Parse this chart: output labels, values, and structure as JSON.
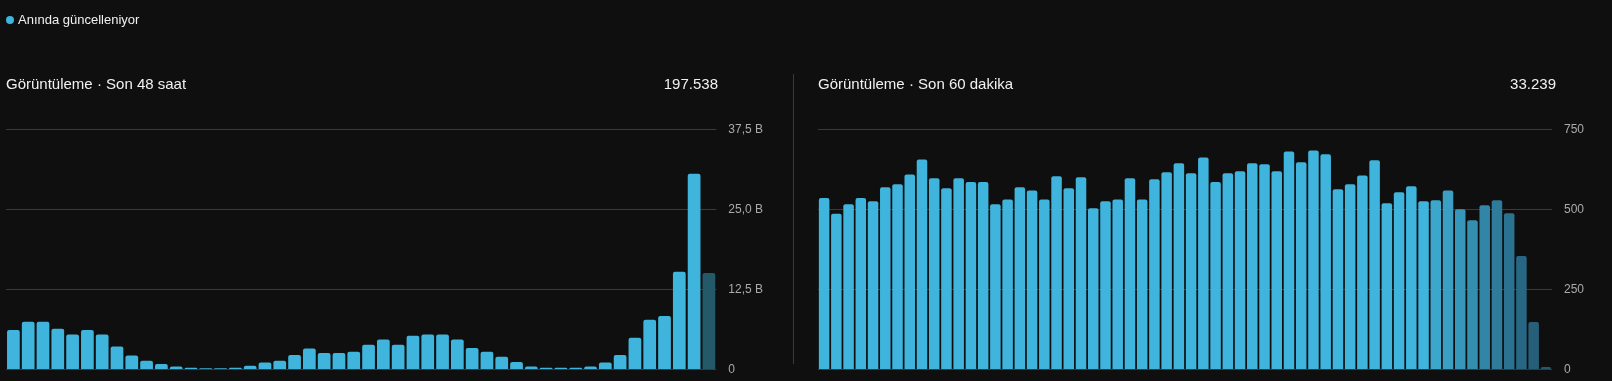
{
  "chart_data": [
    {
      "type": "bar",
      "title": "Görüntüleme · Son 48 saat",
      "subtitle": "197.538",
      "annotations": [
        "Anında güncelleniyor"
      ],
      "categories": [
        null,
        null,
        null,
        null,
        null,
        null,
        null,
        null,
        null,
        null,
        null,
        null,
        null,
        null,
        null,
        null,
        null,
        null,
        null,
        null,
        null,
        null,
        null,
        null,
        null,
        null,
        null,
        null,
        null,
        null,
        null,
        null,
        null,
        null,
        null,
        null,
        null,
        null,
        null,
        null,
        null,
        null,
        null,
        null,
        null,
        null,
        null,
        null
      ],
      "values": [
        6.1,
        7.4,
        7.4,
        6.3,
        5.4,
        6.1,
        5.4,
        3.5,
        2.1,
        1.3,
        0.8,
        0.4,
        0.2,
        0.1,
        0.1,
        0.2,
        0.5,
        1.0,
        1.3,
        2.2,
        3.2,
        2.5,
        2.5,
        2.7,
        3.8,
        4.6,
        3.8,
        5.2,
        5.4,
        5.4,
        4.6,
        3.3,
        2.7,
        1.9,
        1.1,
        0.4,
        0.2,
        0.2,
        0.2,
        0.4,
        1.0,
        2.2,
        4.9,
        7.7,
        8.3,
        15.2,
        30.5,
        15.0
      ],
      "colors": [
        "#3fb4dc",
        "#3fb4dc",
        "#3fb4dc",
        "#3fb4dc",
        "#3fb4dc",
        "#3fb4dc",
        "#3fb4dc",
        "#3fb4dc",
        "#3fb4dc",
        "#3fb4dc",
        "#3fb4dc",
        "#3fb4dc",
        "#3fb4dc",
        "#3fb4dc",
        "#3fb4dc",
        "#3fb4dc",
        "#3fb4dc",
        "#3fb4dc",
        "#3fb4dc",
        "#3fb4dc",
        "#3fb4dc",
        "#3fb4dc",
        "#3fb4dc",
        "#3fb4dc",
        "#3fb4dc",
        "#3fb4dc",
        "#3fb4dc",
        "#3fb4dc",
        "#3fb4dc",
        "#3fb4dc",
        "#3fb4dc",
        "#3fb4dc",
        "#3fb4dc",
        "#3fb4dc",
        "#3fb4dc",
        "#3fb4dc",
        "#3fb4dc",
        "#3fb4dc",
        "#3fb4dc",
        "#3fb4dc",
        "#3fb4dc",
        "#3fb4dc",
        "#3fb4dc",
        "#3fb4dc",
        "#3fb4dc",
        "#3fb4dc",
        "#3fb4dc",
        "#24596a"
      ],
      "ylim": [
        0,
        37.5
      ],
      "yticks": [
        0,
        {
          "value": 12.5,
          "label": "12,5 B"
        },
        {
          "value": 25,
          "label": "25,0 B"
        },
        {
          "value": 37.5,
          "label": "37,5 B"
        }
      ],
      "grid": "y",
      "tick_labels": "y"
    },
    {
      "type": "bar",
      "title": "Görüntüleme · Son 60 dakika",
      "subtitle": "33.239",
      "categories": [
        null,
        null,
        null,
        null,
        null,
        null,
        null,
        null,
        null,
        null,
        null,
        null,
        null,
        null,
        null,
        null,
        null,
        null,
        null,
        null,
        null,
        null,
        null,
        null,
        null,
        null,
        null,
        null,
        null,
        null,
        null,
        null,
        null,
        null,
        null,
        null,
        null,
        null,
        null,
        null,
        null,
        null,
        null,
        null,
        null,
        null,
        null,
        null,
        null,
        null,
        null,
        null,
        null,
        null,
        null,
        null,
        null,
        null,
        null,
        null
      ],
      "values": [
        534,
        485,
        515,
        534,
        524,
        568,
        577,
        608,
        655,
        596,
        565,
        596,
        584,
        584,
        515,
        530,
        568,
        558,
        530,
        602,
        565,
        599,
        502,
        524,
        530,
        596,
        530,
        593,
        615,
        643,
        612,
        661,
        584,
        612,
        618,
        643,
        640,
        618,
        680,
        646,
        683,
        671,
        562,
        577,
        605,
        652,
        518,
        552,
        571,
        524,
        527,
        558,
        499,
        465,
        512,
        527,
        487,
        353,
        147,
        6
      ],
      "colors": [
        "#3fb4dc",
        "#3fb4dc",
        "#3fb4dc",
        "#3fb4dc",
        "#3fb4dc",
        "#3fb4dc",
        "#3fb4dc",
        "#3fb4dc",
        "#3fb4dc",
        "#3fb4dc",
        "#3fb4dc",
        "#3fb4dc",
        "#3fb4dc",
        "#3fb4dc",
        "#3fb4dc",
        "#3fb4dc",
        "#3fb4dc",
        "#3fb4dc",
        "#3fb4dc",
        "#3fb4dc",
        "#3fb4dc",
        "#3fb4dc",
        "#3fb4dc",
        "#3fb4dc",
        "#3fb4dc",
        "#3fb4dc",
        "#3fb4dc",
        "#3fb4dc",
        "#3fb4dc",
        "#3fb4dc",
        "#3fb4dc",
        "#3fb4dc",
        "#3fb4dc",
        "#3fb4dc",
        "#3fb4dc",
        "#3fb4dc",
        "#3fb4dc",
        "#3fb4dc",
        "#3fb4dc",
        "#3fb4dc",
        "#3fb4dc",
        "#3fb4dc",
        "#3fb4dc",
        "#3fb4dc",
        "#3fb4dc",
        "#3fb4dc",
        "#3fb4dc",
        "#3fb4dc",
        "#3fb4dc",
        "#3fb4dc",
        "#3ca6cb",
        "#3a9fc3",
        "#3797ba",
        "#348eb0",
        "#3185a6",
        "#2e7b9b",
        "#2b7190",
        "#286784",
        "#265f77",
        "#245a6b"
      ],
      "ylim": [
        0,
        750
      ],
      "yticks": [
        0,
        250,
        500,
        750
      ],
      "grid": "y",
      "tick_labels": "y"
    }
  ]
}
